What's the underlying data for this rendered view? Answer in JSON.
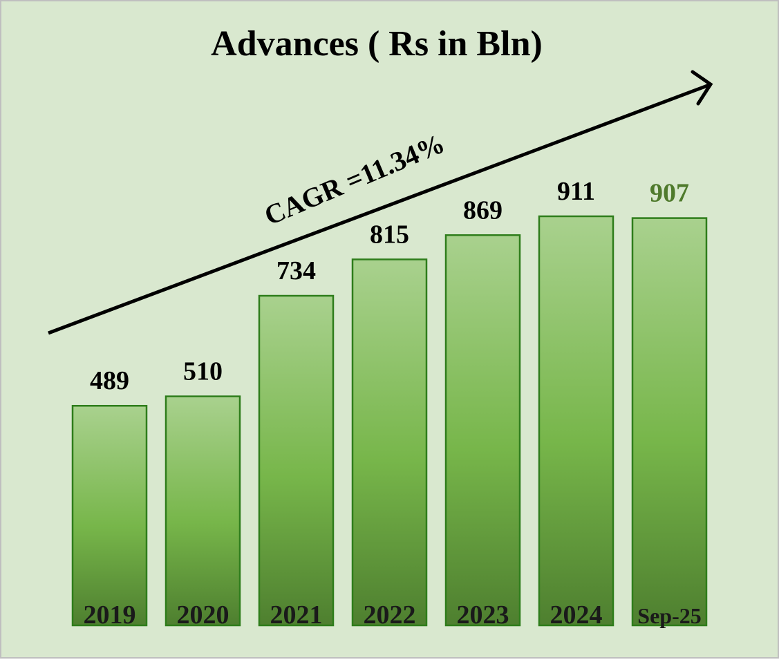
{
  "chart_data": {
    "type": "bar",
    "title": "Advances ( Rs in Bln)",
    "annotation": "CAGR =11.34%",
    "categories": [
      "2019",
      "2020",
      "2021",
      "2022",
      "2023",
      "2024",
      "Sep-25"
    ],
    "values": [
      489,
      510,
      734,
      815,
      869,
      911,
      907
    ],
    "value_label_colors": [
      "#000000",
      "#000000",
      "#000000",
      "#000000",
      "#000000",
      "#000000",
      "#4f7a2c"
    ],
    "color": "#77b64a",
    "grid": false
  }
}
